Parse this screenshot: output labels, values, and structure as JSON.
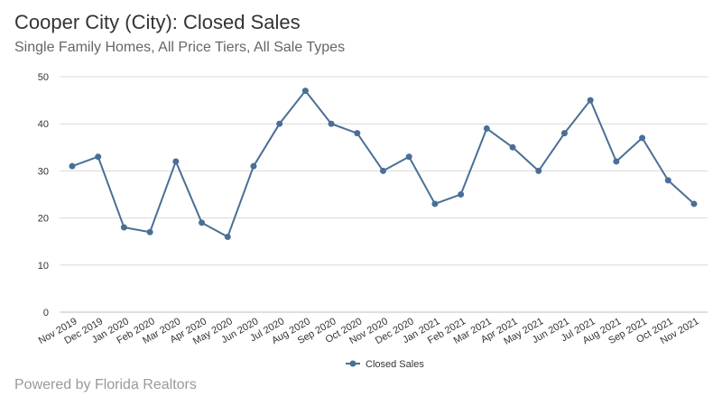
{
  "header": {
    "title": "Cooper City (City): Closed Sales",
    "subtitle": "Single Family Homes, All Price Tiers, All Sale Types"
  },
  "footer": {
    "credit": "Powered by Florida Realtors"
  },
  "colors": {
    "series": "#4a6f96",
    "grid": "#d9d9d9",
    "axis": "#bfbfbf"
  },
  "chart_data": {
    "type": "line",
    "title": "Cooper City (City): Closed Sales",
    "subtitle": "Single Family Homes, All Price Tiers, All Sale Types",
    "xlabel": "",
    "ylabel": "",
    "ylim": [
      0,
      50
    ],
    "yticks": [
      0,
      10,
      20,
      30,
      40,
      50
    ],
    "grid": true,
    "legend": "bottom-center",
    "categories": [
      "Nov 2019",
      "Dec 2019",
      "Jan 2020",
      "Feb 2020",
      "Mar 2020",
      "Apr 2020",
      "May 2020",
      "Jun 2020",
      "Jul 2020",
      "Aug 2020",
      "Sep 2020",
      "Oct 2020",
      "Nov 2020",
      "Dec 2020",
      "Jan 2021",
      "Feb 2021",
      "Mar 2021",
      "Apr 2021",
      "May 2021",
      "Jun 2021",
      "Jul 2021",
      "Aug 2021",
      "Sep 2021",
      "Oct 2021",
      "Nov 2021"
    ],
    "series": [
      {
        "name": "Closed Sales",
        "values": [
          31,
          33,
          18,
          17,
          32,
          19,
          16,
          31,
          40,
          47,
          40,
          38,
          30,
          33,
          23,
          25,
          39,
          35,
          30,
          38,
          45,
          32,
          37,
          28,
          23
        ]
      }
    ]
  }
}
